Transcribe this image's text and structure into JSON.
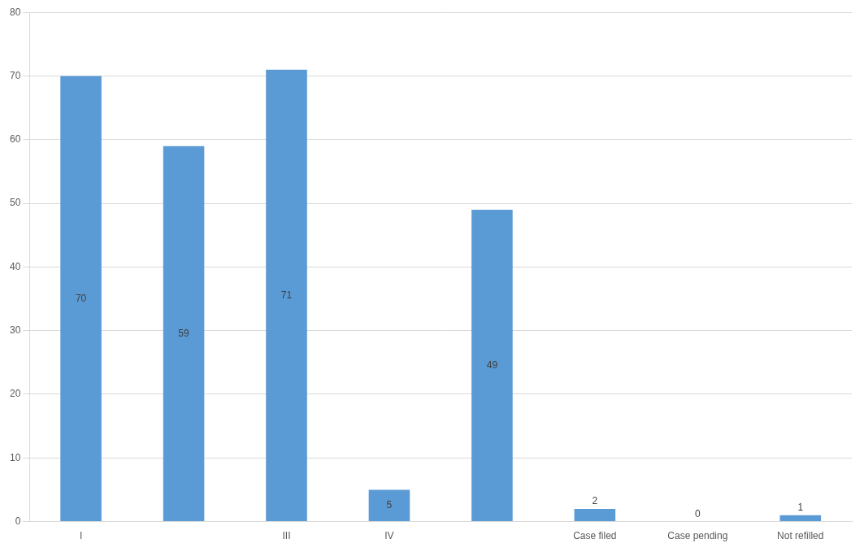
{
  "chart_data": {
    "type": "bar",
    "categories": [
      "I",
      null,
      "III",
      "IV",
      null,
      "Case filed",
      "Case pending",
      "Not refilled"
    ],
    "values": [
      70,
      59,
      71,
      5,
      49,
      2,
      0,
      1
    ],
    "color": "#5b9bd5",
    "ylim": [
      0,
      80
    ],
    "yticks": [
      0,
      10,
      20,
      30,
      40,
      50,
      60,
      70,
      80
    ],
    "grid": true,
    "data_labels": true
  }
}
